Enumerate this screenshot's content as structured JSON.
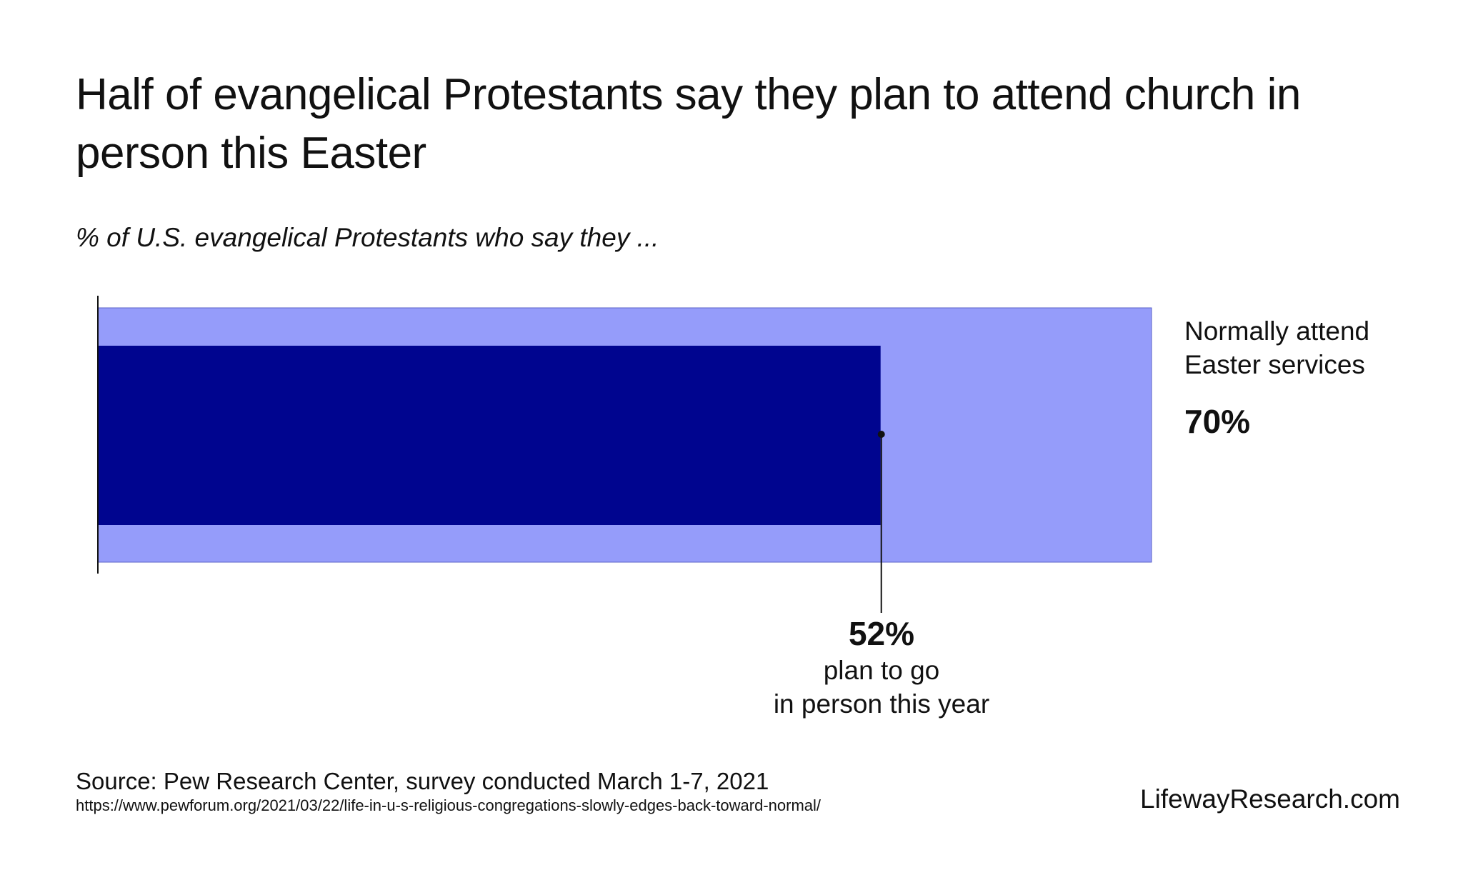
{
  "title": "Half of evangelical Protestants say they plan to attend church in person this Easter",
  "subtitle": "% of U.S. evangelical Protestants who say they ...",
  "chart_data": {
    "type": "bar",
    "orientation": "horizontal",
    "layout": "overlapping bars",
    "xlim": [
      0,
      70
    ],
    "grid": false,
    "series": [
      {
        "name": "Normally attend Easter services",
        "value": 70,
        "value_label": "70%",
        "color": "#959cfa"
      },
      {
        "name": "plan to go in person this year",
        "value": 52,
        "value_label": "52%",
        "color": "#00058f"
      }
    ],
    "annotations": {
      "outer": {
        "lines": [
          "Normally attend",
          "Easter services"
        ],
        "value": "70%"
      },
      "inner": {
        "value": "52%",
        "lines": [
          "plan to go",
          "in person this year"
        ]
      }
    }
  },
  "footer": {
    "source": "Source: Pew Research Center, survey conducted March 1-7, 2021",
    "url": "https://www.pewforum.org/2021/03/22/life-in-u-s-religious-congregations-slowly-edges-back-toward-normal/",
    "brand": "LifewayResearch.com"
  }
}
